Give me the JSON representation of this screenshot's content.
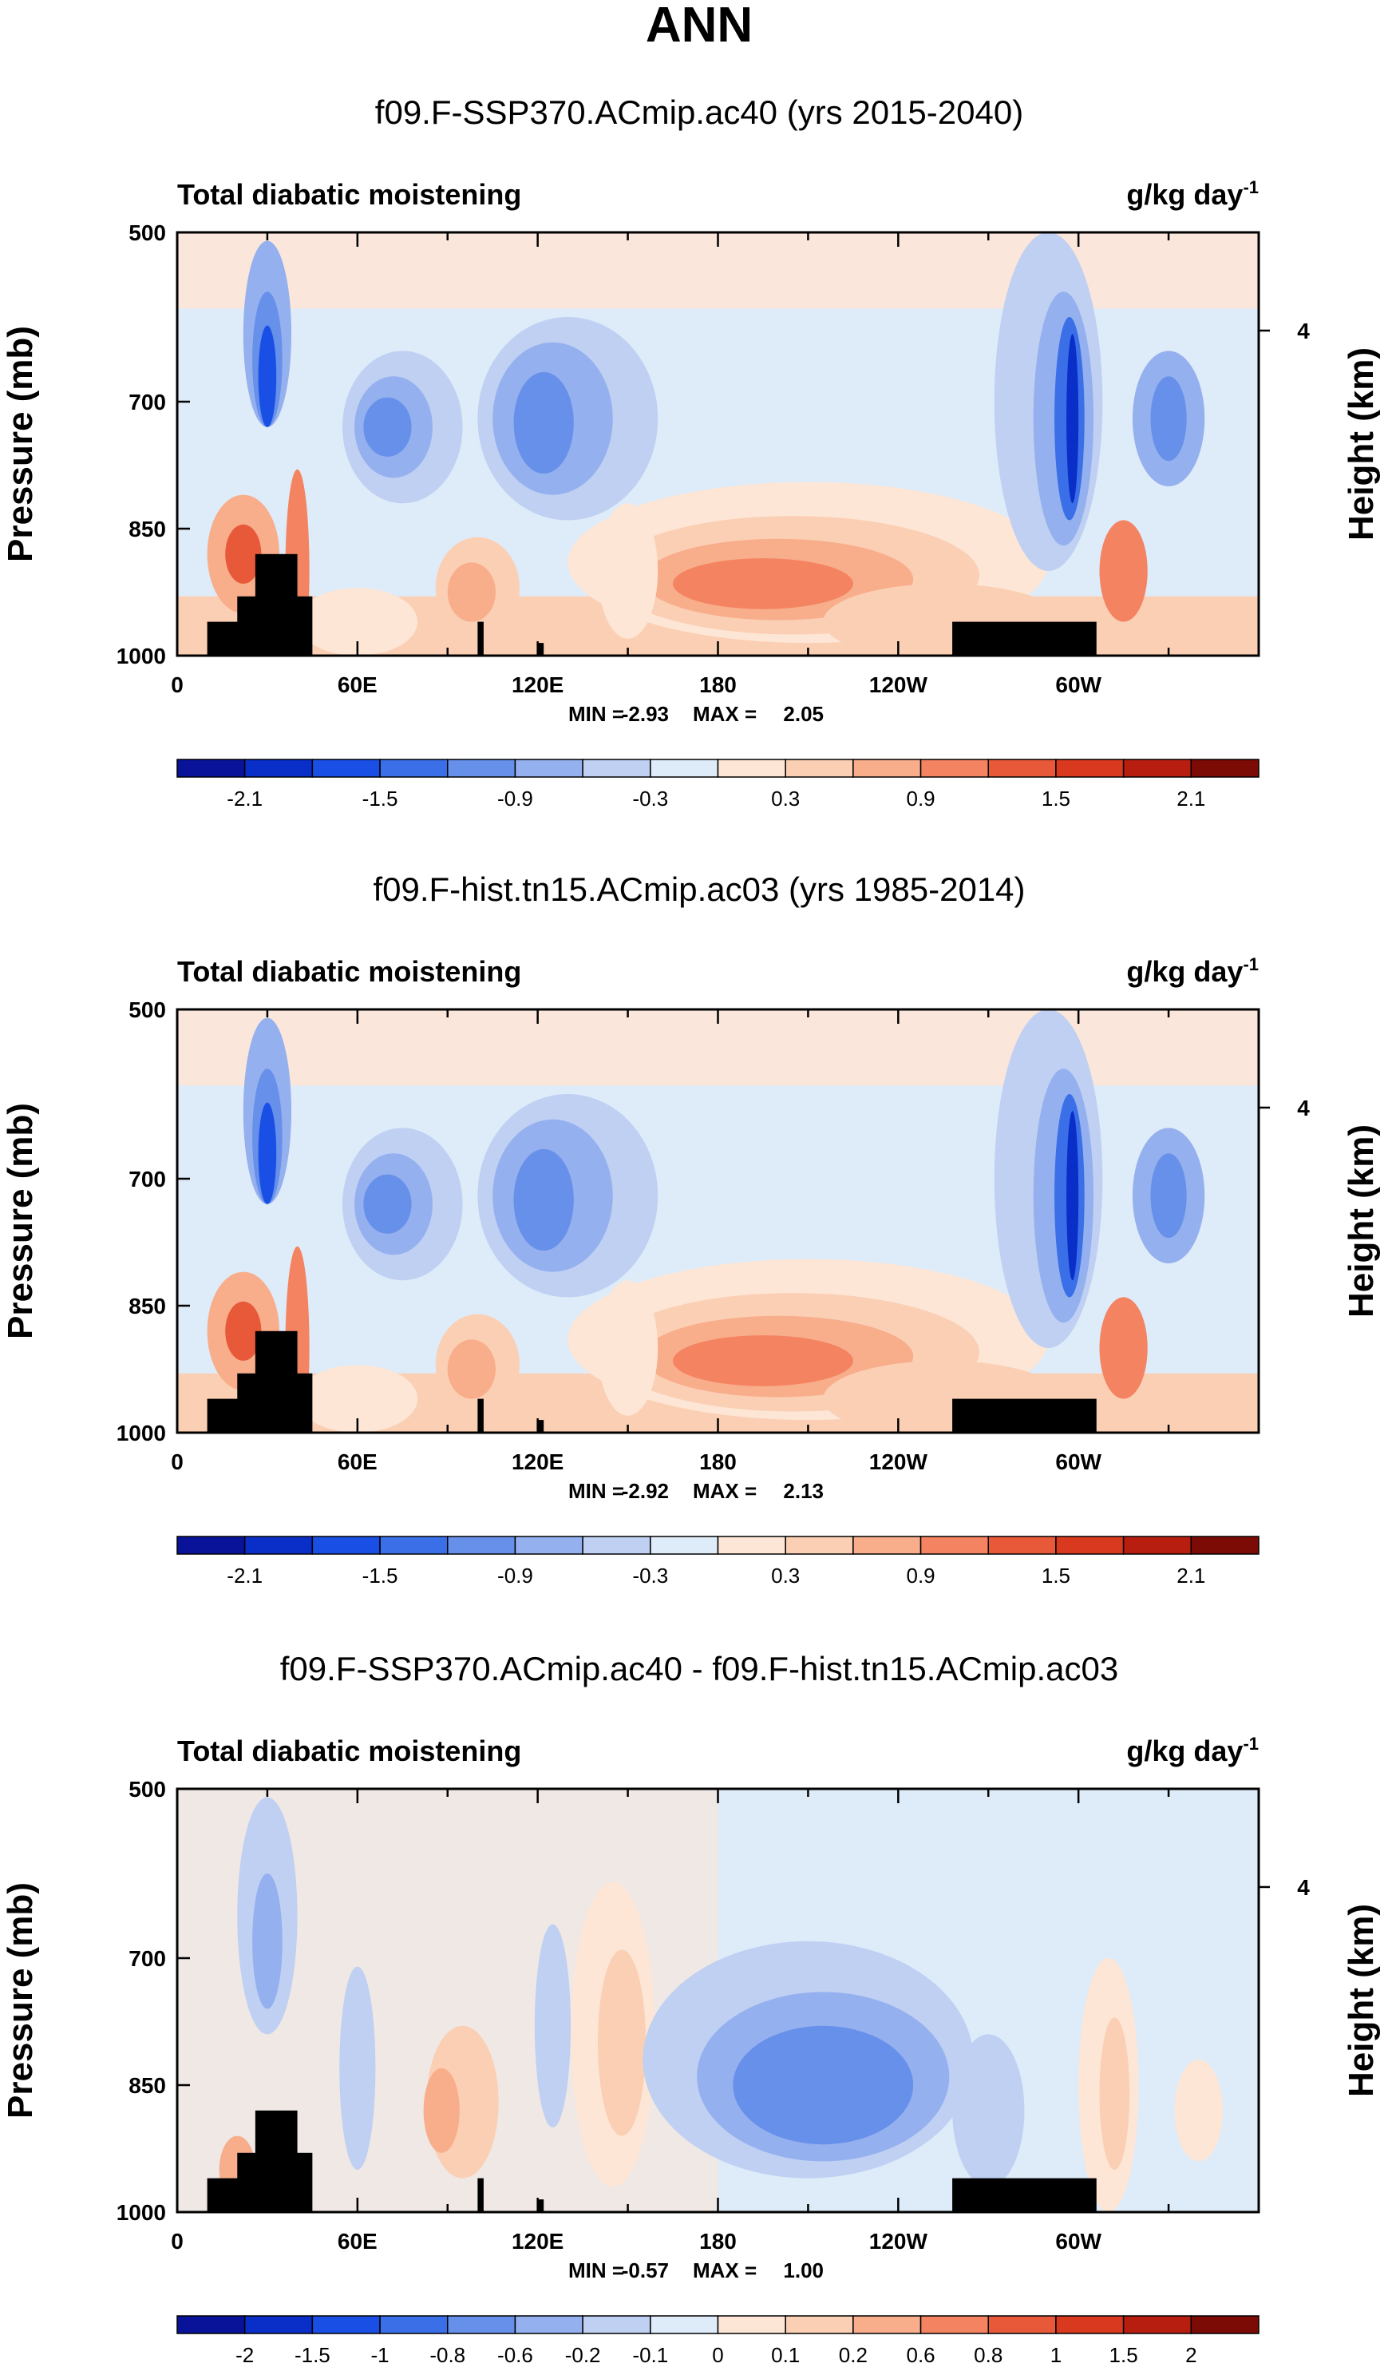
{
  "figure": {
    "title": "ANN"
  },
  "chart_data": [
    {
      "type": "contour",
      "title": "f09.F-SSP370.ACmip.ac40 (yrs 2015-2040)",
      "variable": "Total diabatic moistening",
      "units_base": "g/kg day",
      "units_exp": "-1",
      "ylabel": "Pressure (mb)",
      "y2label": "Height (km)",
      "yticks": [
        500,
        700,
        850,
        1000
      ],
      "y2ticks": [
        "4"
      ],
      "xticks": [
        "0",
        "60E",
        "120E",
        "180",
        "120W",
        "60W"
      ],
      "stats": {
        "min_label": "MIN =",
        "min": "-2.93",
        "max_label": "MAX =",
        "max": "2.05"
      },
      "colorbar_labels": [
        "-2.1",
        "-1.5",
        "-0.9",
        "-0.3",
        "0.3",
        "0.9",
        "1.5",
        "2.1"
      ],
      "colorbar_colors": [
        "#08139a",
        "#0a2fc9",
        "#1a4fe6",
        "#3b6fe8",
        "#6790ea",
        "#94b0ee",
        "#bfd0f3",
        "#deebf8",
        "#fde6d6",
        "#fbcfb4",
        "#f8ad8b",
        "#f48361",
        "#e8593a",
        "#d8391f",
        "#b71e10",
        "#7c0b05"
      ]
    },
    {
      "type": "contour",
      "title": "f09.F-hist.tn15.ACmip.ac03 (yrs 1985-2014)",
      "variable": "Total diabatic moistening",
      "units_base": "g/kg day",
      "units_exp": "-1",
      "ylabel": "Pressure (mb)",
      "y2label": "Height (km)",
      "yticks": [
        500,
        700,
        850,
        1000
      ],
      "y2ticks": [
        "4"
      ],
      "xticks": [
        "0",
        "60E",
        "120E",
        "180",
        "120W",
        "60W"
      ],
      "stats": {
        "min_label": "MIN =",
        "min": "-2.92",
        "max_label": "MAX =",
        "max": "2.13"
      },
      "colorbar_labels": [
        "-2.1",
        "-1.5",
        "-0.9",
        "-0.3",
        "0.3",
        "0.9",
        "1.5",
        "2.1"
      ],
      "colorbar_colors": [
        "#08139a",
        "#0a2fc9",
        "#1a4fe6",
        "#3b6fe8",
        "#6790ea",
        "#94b0ee",
        "#bfd0f3",
        "#deebf8",
        "#fde6d6",
        "#fbcfb4",
        "#f8ad8b",
        "#f48361",
        "#e8593a",
        "#d8391f",
        "#b71e10",
        "#7c0b05"
      ]
    },
    {
      "type": "contour",
      "title": "f09.F-SSP370.ACmip.ac40 - f09.F-hist.tn15.ACmip.ac03",
      "variable": "Total diabatic moistening",
      "units_base": "g/kg day",
      "units_exp": "-1",
      "ylabel": "Pressure (mb)",
      "y2label": "Height (km)",
      "yticks": [
        500,
        700,
        850,
        1000
      ],
      "y2ticks": [
        "4"
      ],
      "xticks": [
        "0",
        "60E",
        "120E",
        "180",
        "120W",
        "60W"
      ],
      "stats": {
        "min_label": "MIN =",
        "min": "-0.57",
        "max_label": "MAX =",
        "max": "1.00"
      },
      "colorbar_labels": [
        "-2",
        "-1.5",
        "-1",
        "-0.8",
        "-0.6",
        "-0.2",
        "-0.1",
        "0",
        "0.1",
        "0.2",
        "0.6",
        "0.8",
        "1",
        "1.5",
        "2"
      ],
      "colorbar_colors": [
        "#08139a",
        "#0a2fc9",
        "#1a4fe6",
        "#3b6fe8",
        "#6790ea",
        "#94b0ee",
        "#bfd0f3",
        "#deebf8",
        "#fde6d6",
        "#fbcfb4",
        "#f8ad8b",
        "#f48361",
        "#e8593a",
        "#d8391f",
        "#b71e10",
        "#7c0b05"
      ]
    }
  ]
}
